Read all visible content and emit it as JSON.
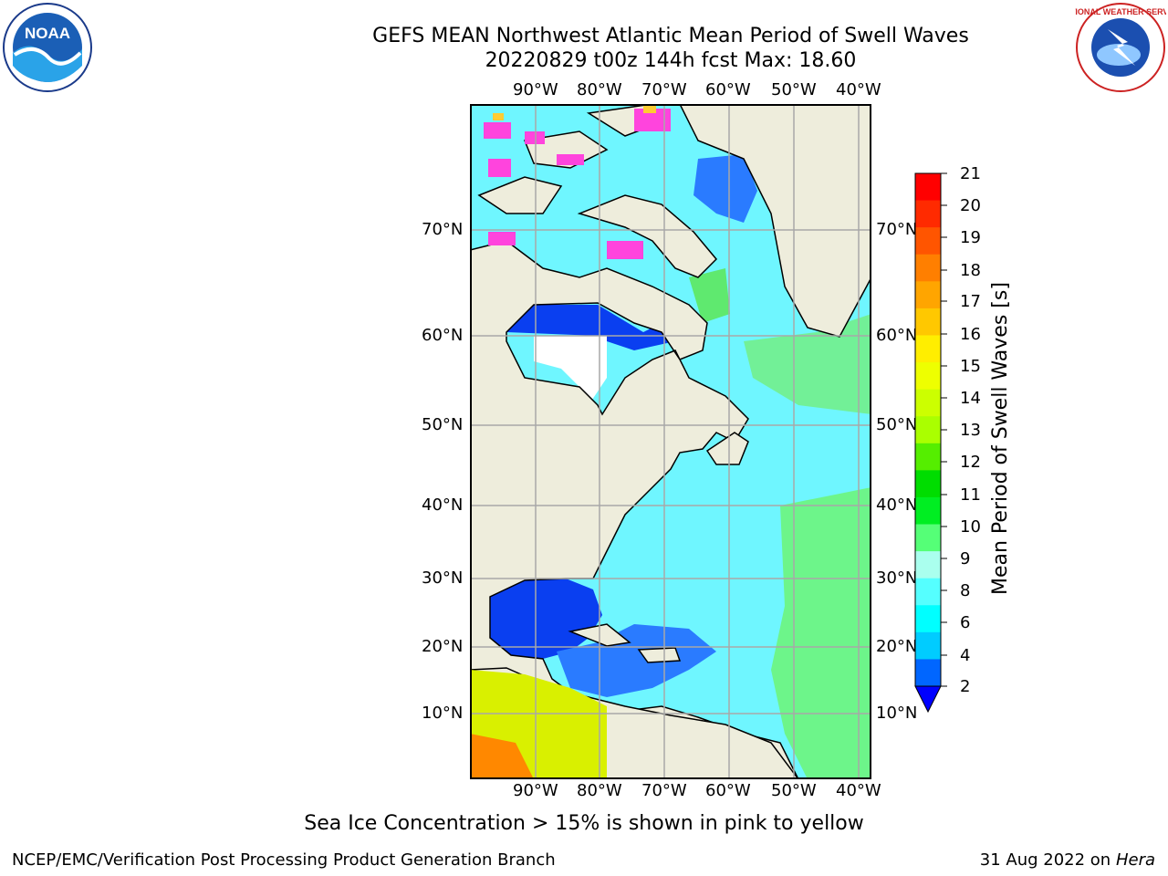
{
  "title_line1": "GEFS MEAN Northwest Atlantic Mean Period of Swell Waves",
  "title_line2": "20220829 t00z 144h fcst   Max: 18.60",
  "lon_labels": [
    "90°W",
    "80°W",
    "70°W",
    "60°W",
    "50°W",
    "40°W"
  ],
  "lat_labels": [
    "70°N",
    "60°N",
    "50°N",
    "40°N",
    "30°N",
    "20°N",
    "10°N"
  ],
  "colorbar": {
    "label": "Mean Period of Swell Waves [s]",
    "ticks": [
      "21",
      "20",
      "19",
      "18",
      "17",
      "16",
      "15",
      "14",
      "13",
      "12",
      "11",
      "10",
      "9",
      "8",
      "6",
      "4",
      "2"
    ],
    "colors": [
      "#ff0000",
      "#ff2a00",
      "#ff5500",
      "#ff7f00",
      "#ffa500",
      "#ffc800",
      "#ffee00",
      "#eeff00",
      "#ccff00",
      "#aaff00",
      "#55ee00",
      "#00dd00",
      "#00ee22",
      "#55ff77",
      "#aaffee",
      "#55ffff",
      "#00ffff",
      "#00ccff",
      "#0066ff"
    ]
  },
  "note": "Sea Ice Concentration > 15% is shown in pink to yellow",
  "footer_left": "NCEP/EMC/Verification Post Processing Product Generation Branch",
  "footer_date": "31 Aug 2022 on",
  "footer_machine": "Hera",
  "logos": {
    "left": "NOAA",
    "right": "NATIONAL WEATHER SERVICE"
  }
}
